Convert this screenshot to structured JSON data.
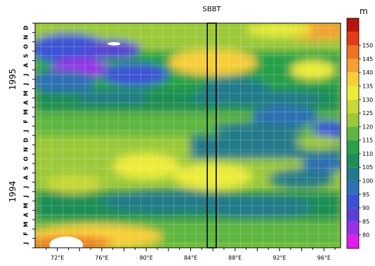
{
  "chart_data": {
    "type": "heatmap",
    "title": "",
    "xlabel": "",
    "ylabel": "",
    "annotation": "SBBT",
    "colorbar_unit": "m",
    "x_ticks": [
      "72°E",
      "76°E",
      "80°E",
      "84°E",
      "88°E",
      "92°E",
      "96°E"
    ],
    "x_tick_values": [
      72,
      76,
      80,
      84,
      88,
      92,
      96
    ],
    "xlim": [
      70,
      97.5
    ],
    "ylim": [
      0,
      24
    ],
    "y_year_labels": [
      {
        "label": "1994",
        "month_center": 6
      },
      {
        "label": "1995",
        "month_center": 18
      }
    ],
    "y_month_labels": [
      "J",
      "F",
      "M",
      "A",
      "M",
      "J",
      "J",
      "A",
      "S",
      "O",
      "N",
      "D",
      "J",
      "F",
      "M",
      "A",
      "M",
      "J",
      "J",
      "A",
      "S",
      "O",
      "N",
      "D"
    ],
    "sbbt_box_lon": [
      85.5,
      86.3
    ],
    "colorbar": {
      "levels": [
        80,
        85,
        90,
        95,
        100,
        105,
        110,
        115,
        120,
        125,
        130,
        135,
        140,
        145,
        150
      ],
      "colors": [
        "#e21bef",
        "#9b2ee8",
        "#5a3fd4",
        "#3a52d6",
        "#2f6fb4",
        "#237a8a",
        "#1d8e55",
        "#27a04a",
        "#5fb640",
        "#9cc93a",
        "#c8d836",
        "#ecec3a",
        "#f7cf3a",
        "#f5a030",
        "#f07320",
        "#e33a15",
        "#b8140e"
      ]
    },
    "grid": true
  }
}
